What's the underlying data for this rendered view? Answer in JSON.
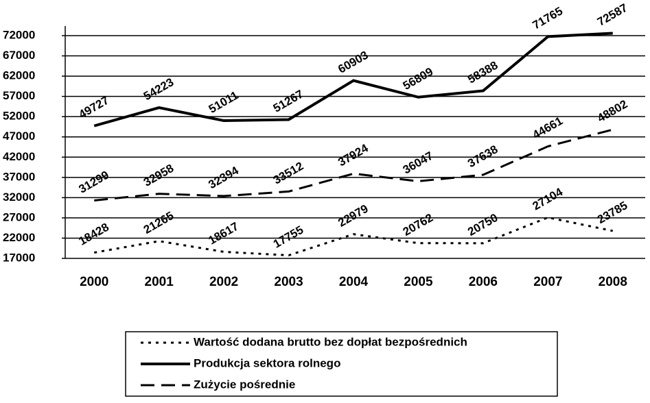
{
  "chart_data": {
    "type": "line",
    "categories": [
      "2000",
      "2001",
      "2002",
      "2003",
      "2004",
      "2005",
      "2006",
      "2007",
      "2008"
    ],
    "series": [
      {
        "name": "Wartość dodana brutto bez dopłat bezpośrednich",
        "color": "#000000",
        "dash": "dotted",
        "values": [
          18428,
          21265,
          18617,
          17755,
          22979,
          20762,
          20750,
          27104,
          23785
        ]
      },
      {
        "name": "Produkcja sektora rolnego",
        "color": "#000000",
        "dash": "solid",
        "values": [
          49727,
          54223,
          51011,
          51267,
          60903,
          56809,
          58388,
          71765,
          72587
        ]
      },
      {
        "name": "Zużycie pośrednie",
        "color": "#000000",
        "dash": "dashed",
        "values": [
          31299,
          32958,
          32394,
          33512,
          37924,
          36047,
          37638,
          44661,
          48802
        ]
      }
    ],
    "ylim": [
      17000,
      72000
    ],
    "yticks": [
      17000,
      22000,
      27000,
      32000,
      37000,
      42000,
      47000,
      52000,
      57000,
      62000,
      67000,
      72000
    ],
    "grid": true,
    "legend": "bottom"
  }
}
